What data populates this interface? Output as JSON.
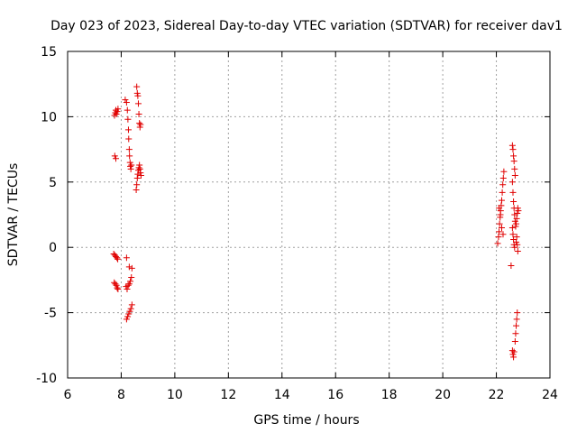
{
  "chart_data": {
    "type": "scatter",
    "title": "Day 023 of 2023, Sidereal Day-to-day VTEC variation (SDTVAR) for receiver dav1",
    "xlabel": "GPS time / hours",
    "ylabel": "SDTVAR / TECUs",
    "xlim": [
      6,
      24
    ],
    "ylim": [
      -10,
      15
    ],
    "xticks": [
      6,
      8,
      10,
      12,
      14,
      16,
      18,
      20,
      22,
      24
    ],
    "yticks": [
      -10,
      -5,
      0,
      5,
      10,
      15
    ],
    "xtick_labels": [
      "6",
      "8",
      "10",
      "12",
      "14",
      "16",
      "18",
      "20",
      "22",
      "24"
    ],
    "ytick_labels": [
      "-10",
      "-5",
      "0",
      "5",
      "10",
      "15"
    ],
    "grid": true,
    "marker": "+",
    "marker_color": "#e00000",
    "series": [
      {
        "name": "SDTVAR",
        "points": [
          [
            7.75,
            10.1
          ],
          [
            7.78,
            10.3
          ],
          [
            7.8,
            10.5
          ],
          [
            7.82,
            10.2
          ],
          [
            7.85,
            10.4
          ],
          [
            7.88,
            10.6
          ],
          [
            7.76,
            7.0
          ],
          [
            7.8,
            6.8
          ],
          [
            7.72,
            -0.5
          ],
          [
            7.76,
            -0.6
          ],
          [
            7.8,
            -0.7
          ],
          [
            7.84,
            -0.8
          ],
          [
            7.87,
            -0.9
          ],
          [
            7.74,
            -2.7
          ],
          [
            7.78,
            -2.8
          ],
          [
            7.82,
            -2.9
          ],
          [
            7.85,
            -3.1
          ],
          [
            7.88,
            -3.2
          ],
          [
            8.15,
            11.3
          ],
          [
            8.2,
            11.1
          ],
          [
            8.23,
            10.5
          ],
          [
            8.25,
            9.8
          ],
          [
            8.27,
            9.0
          ],
          [
            8.28,
            8.3
          ],
          [
            8.3,
            7.5
          ],
          [
            8.31,
            7.0
          ],
          [
            8.33,
            6.5
          ],
          [
            8.34,
            6.2
          ],
          [
            8.36,
            6.0
          ],
          [
            8.38,
            6.3
          ],
          [
            8.2,
            -0.8
          ],
          [
            8.3,
            -1.5
          ],
          [
            8.4,
            -1.6
          ],
          [
            8.18,
            -3.0
          ],
          [
            8.22,
            -3.2
          ],
          [
            8.26,
            -2.9
          ],
          [
            8.3,
            -2.8
          ],
          [
            8.34,
            -2.6
          ],
          [
            8.38,
            -2.3
          ],
          [
            8.2,
            -5.5
          ],
          [
            8.24,
            -5.3
          ],
          [
            8.28,
            -5.1
          ],
          [
            8.32,
            -4.9
          ],
          [
            8.36,
            -4.7
          ],
          [
            8.4,
            -4.4
          ],
          [
            8.58,
            12.3
          ],
          [
            8.6,
            11.8
          ],
          [
            8.62,
            11.6
          ],
          [
            8.64,
            11.0
          ],
          [
            8.66,
            10.2
          ],
          [
            8.68,
            9.5
          ],
          [
            8.7,
            9.2
          ],
          [
            8.72,
            9.4
          ],
          [
            8.56,
            4.4
          ],
          [
            8.58,
            4.8
          ],
          [
            8.6,
            5.3
          ],
          [
            8.62,
            5.6
          ],
          [
            8.64,
            5.9
          ],
          [
            8.66,
            6.1
          ],
          [
            8.68,
            6.3
          ],
          [
            8.7,
            6.0
          ],
          [
            8.72,
            5.7
          ],
          [
            8.74,
            5.5
          ],
          [
            22.05,
            0.3
          ],
          [
            22.08,
            0.8
          ],
          [
            22.1,
            1.2
          ],
          [
            22.12,
            1.8
          ],
          [
            22.14,
            2.3
          ],
          [
            22.16,
            2.8
          ],
          [
            22.18,
            3.2
          ],
          [
            22.2,
            3.6
          ],
          [
            22.22,
            4.2
          ],
          [
            22.24,
            4.8
          ],
          [
            22.26,
            5.3
          ],
          [
            22.28,
            5.8
          ],
          [
            22.1,
            3.0
          ],
          [
            22.15,
            2.5
          ],
          [
            22.2,
            1.5
          ],
          [
            22.25,
            1.0
          ],
          [
            22.55,
            -1.4
          ],
          [
            22.6,
            7.8
          ],
          [
            22.62,
            7.5
          ],
          [
            22.64,
            7.0
          ],
          [
            22.66,
            6.6
          ],
          [
            22.68,
            6.0
          ],
          [
            22.7,
            5.5
          ],
          [
            22.6,
            5.0
          ],
          [
            22.62,
            4.2
          ],
          [
            22.64,
            3.5
          ],
          [
            22.66,
            3.0
          ],
          [
            22.68,
            2.5
          ],
          [
            22.7,
            2.0
          ],
          [
            22.6,
            1.5
          ],
          [
            22.62,
            1.0
          ],
          [
            22.64,
            0.6
          ],
          [
            22.66,
            0.2
          ],
          [
            22.68,
            0.0
          ],
          [
            22.72,
            1.6
          ],
          [
            22.74,
            1.8
          ],
          [
            22.76,
            2.2
          ],
          [
            22.78,
            2.6
          ],
          [
            22.8,
            3.0
          ],
          [
            22.82,
            2.8
          ],
          [
            22.74,
            0.4
          ],
          [
            22.76,
            0.8
          ],
          [
            22.78,
            0.2
          ],
          [
            22.8,
            -0.3
          ],
          [
            22.6,
            -7.9
          ],
          [
            22.62,
            -8.2
          ],
          [
            22.64,
            -8.4
          ],
          [
            22.66,
            -8.0
          ],
          [
            22.7,
            -7.2
          ],
          [
            22.72,
            -6.6
          ],
          [
            22.74,
            -6.0
          ],
          [
            22.76,
            -5.5
          ],
          [
            22.78,
            -5.0
          ]
        ]
      }
    ]
  }
}
